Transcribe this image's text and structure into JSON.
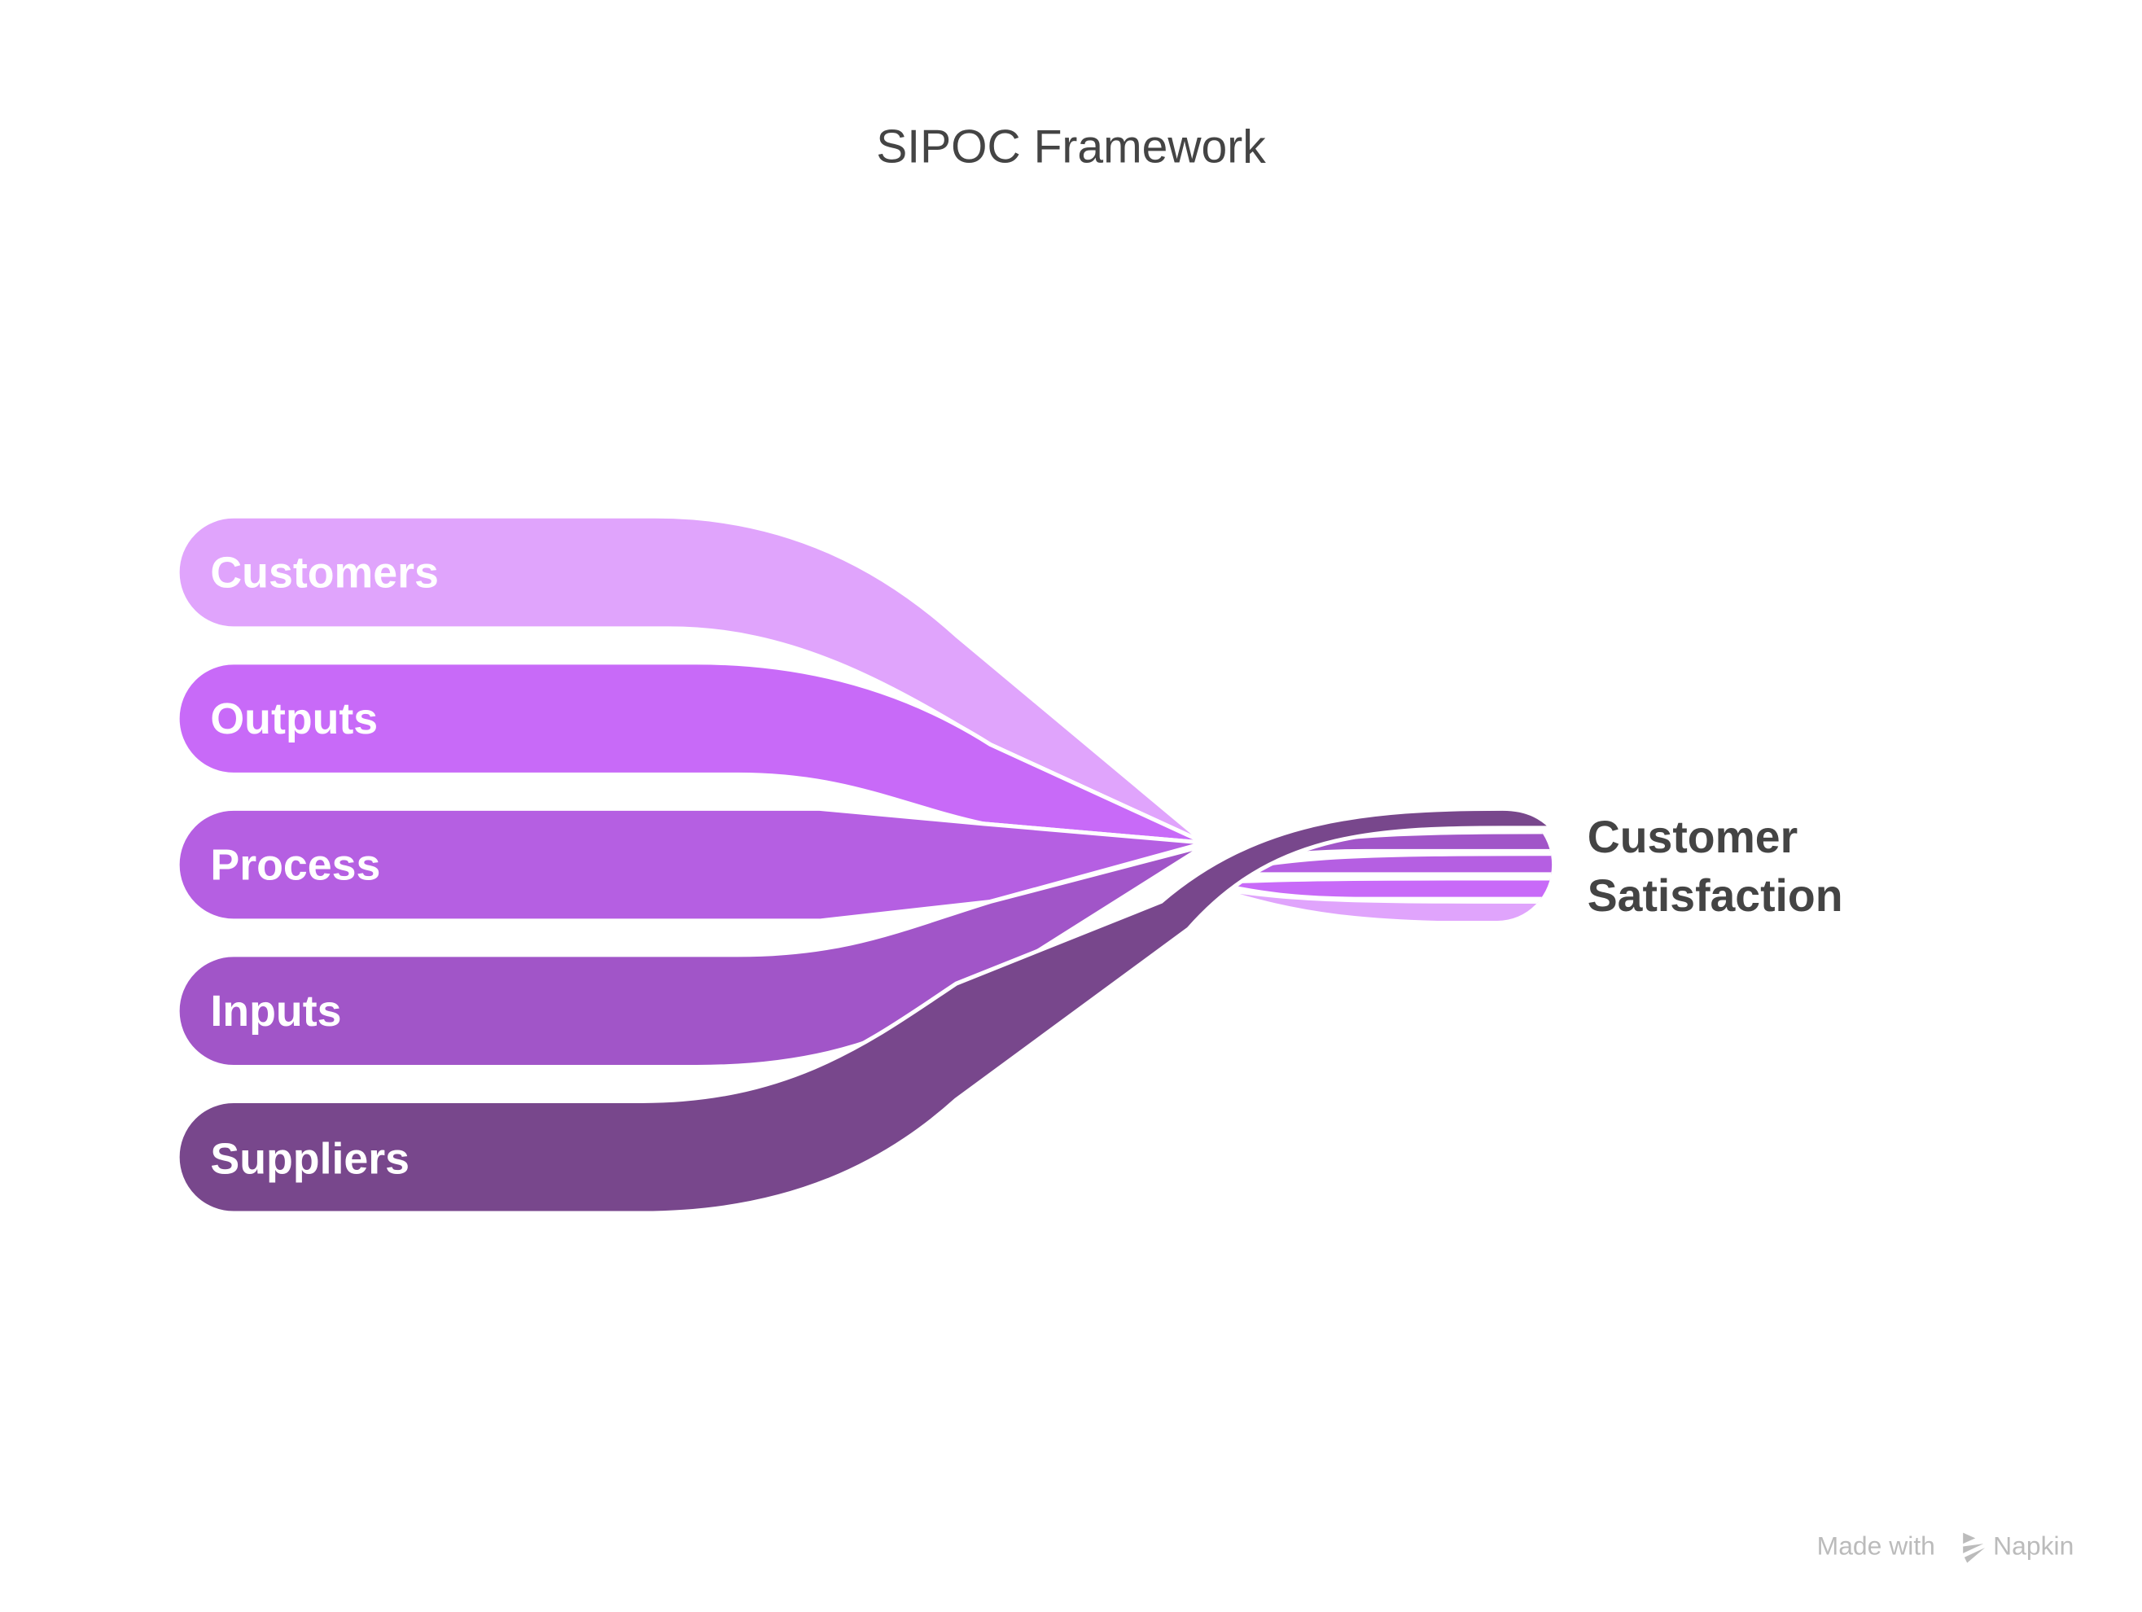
{
  "title": "SIPOC Framework",
  "stages": [
    {
      "label": "Customers",
      "color": "#E0A4FC"
    },
    {
      "label": "Outputs",
      "color": "#C86AF8"
    },
    {
      "label": "Process",
      "color": "#B55FE2"
    },
    {
      "label": "Inputs",
      "color": "#A155C8"
    },
    {
      "label": "Suppliers",
      "color": "#78478C"
    }
  ],
  "outcome": {
    "line1": "Customer",
    "line2": "Satisfaction",
    "color": "#444444"
  },
  "watermark": {
    "prefix": "Made with",
    "brand": "Napkin",
    "icon": "napkin-logo-icon"
  }
}
